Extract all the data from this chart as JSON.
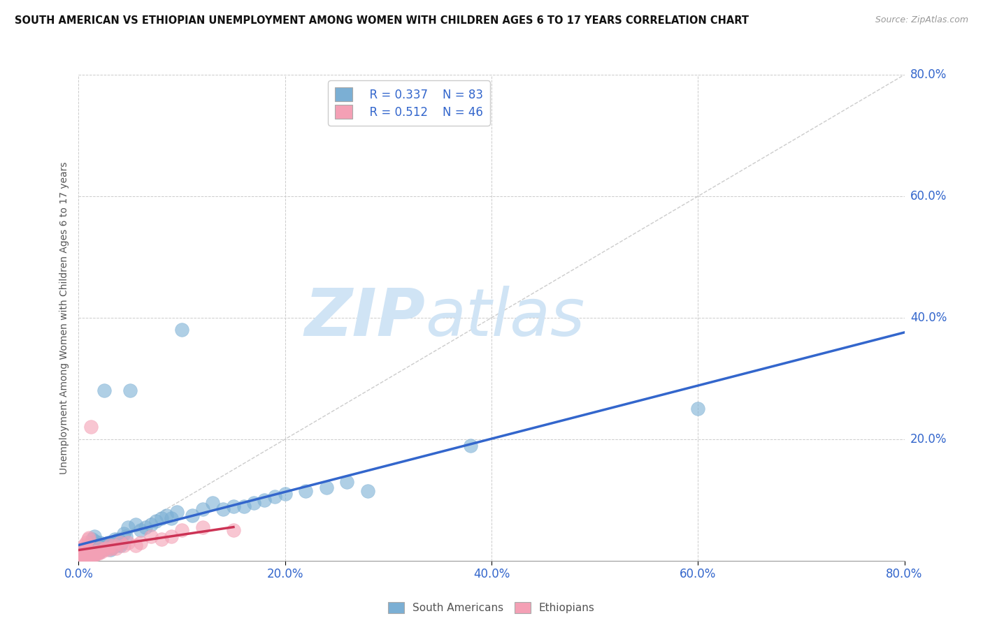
{
  "title": "SOUTH AMERICAN VS ETHIOPIAN UNEMPLOYMENT AMONG WOMEN WITH CHILDREN AGES 6 TO 17 YEARS CORRELATION CHART",
  "source": "Source: ZipAtlas.com",
  "ylabel": "Unemployment Among Women with Children Ages 6 to 17 years",
  "xlim": [
    0.0,
    0.8
  ],
  "ylim": [
    0.0,
    0.8
  ],
  "xticks": [
    0.0,
    0.2,
    0.4,
    0.6,
    0.8
  ],
  "yticks": [
    0.0,
    0.2,
    0.4,
    0.6,
    0.8
  ],
  "xticklabels": [
    "0.0%",
    "20.0%",
    "40.0%",
    "60.0%",
    "80.0%"
  ],
  "yticklabels": [
    "",
    "20.0%",
    "40.0%",
    "60.0%",
    "80.0%"
  ],
  "background_color": "#ffffff",
  "grid_color": "#cccccc",
  "blue_color": "#7bafd4",
  "pink_color": "#f4a0b5",
  "blue_line_color": "#3366cc",
  "pink_line_color": "#cc3355",
  "diag_line_color": "#cccccc",
  "watermark_color": "#d0e4f5",
  "legend_r1": "R = 0.337",
  "legend_n1": "N = 83",
  "legend_r2": "R = 0.512",
  "legend_n2": "N = 46",
  "legend_label1": "South Americans",
  "legend_label2": "Ethiopians",
  "south_american_x": [
    0.001,
    0.002,
    0.003,
    0.003,
    0.004,
    0.004,
    0.005,
    0.005,
    0.006,
    0.006,
    0.007,
    0.007,
    0.008,
    0.008,
    0.009,
    0.009,
    0.01,
    0.01,
    0.011,
    0.011,
    0.012,
    0.012,
    0.013,
    0.013,
    0.014,
    0.014,
    0.015,
    0.015,
    0.016,
    0.016,
    0.017,
    0.018,
    0.019,
    0.02,
    0.021,
    0.022,
    0.023,
    0.024,
    0.025,
    0.026,
    0.027,
    0.028,
    0.029,
    0.03,
    0.031,
    0.032,
    0.033,
    0.034,
    0.035,
    0.036,
    0.038,
    0.04,
    0.042,
    0.044,
    0.046,
    0.048,
    0.05,
    0.055,
    0.06,
    0.065,
    0.07,
    0.075,
    0.08,
    0.085,
    0.09,
    0.095,
    0.1,
    0.11,
    0.12,
    0.13,
    0.14,
    0.15,
    0.16,
    0.17,
    0.18,
    0.19,
    0.2,
    0.22,
    0.24,
    0.26,
    0.28,
    0.38,
    0.6
  ],
  "south_american_y": [
    0.005,
    0.003,
    0.008,
    0.012,
    0.006,
    0.015,
    0.004,
    0.01,
    0.007,
    0.014,
    0.009,
    0.016,
    0.005,
    0.018,
    0.008,
    0.02,
    0.006,
    0.022,
    0.01,
    0.025,
    0.008,
    0.03,
    0.012,
    0.035,
    0.01,
    0.028,
    0.015,
    0.04,
    0.012,
    0.032,
    0.018,
    0.02,
    0.025,
    0.015,
    0.03,
    0.022,
    0.018,
    0.025,
    0.28,
    0.02,
    0.028,
    0.025,
    0.03,
    0.025,
    0.018,
    0.022,
    0.025,
    0.03,
    0.035,
    0.025,
    0.035,
    0.025,
    0.03,
    0.045,
    0.04,
    0.055,
    0.28,
    0.06,
    0.05,
    0.055,
    0.06,
    0.065,
    0.07,
    0.075,
    0.07,
    0.08,
    0.38,
    0.075,
    0.085,
    0.095,
    0.085,
    0.09,
    0.09,
    0.095,
    0.1,
    0.105,
    0.11,
    0.115,
    0.12,
    0.13,
    0.115,
    0.19,
    0.25
  ],
  "ethiopian_x": [
    0.001,
    0.002,
    0.003,
    0.003,
    0.004,
    0.005,
    0.005,
    0.006,
    0.006,
    0.007,
    0.007,
    0.008,
    0.008,
    0.009,
    0.01,
    0.01,
    0.011,
    0.012,
    0.012,
    0.013,
    0.014,
    0.015,
    0.016,
    0.017,
    0.018,
    0.019,
    0.02,
    0.022,
    0.024,
    0.026,
    0.028,
    0.03,
    0.032,
    0.034,
    0.036,
    0.04,
    0.044,
    0.048,
    0.055,
    0.06,
    0.07,
    0.08,
    0.09,
    0.1,
    0.12,
    0.15
  ],
  "ethiopian_y": [
    0.004,
    0.008,
    0.005,
    0.02,
    0.01,
    0.004,
    0.025,
    0.006,
    0.015,
    0.005,
    0.03,
    0.008,
    0.018,
    0.035,
    0.008,
    0.038,
    0.005,
    0.012,
    0.22,
    0.008,
    0.01,
    0.015,
    0.01,
    0.012,
    0.015,
    0.012,
    0.02,
    0.015,
    0.018,
    0.02,
    0.018,
    0.025,
    0.02,
    0.025,
    0.02,
    0.03,
    0.025,
    0.03,
    0.025,
    0.03,
    0.04,
    0.035,
    0.04,
    0.05,
    0.055,
    0.05
  ]
}
